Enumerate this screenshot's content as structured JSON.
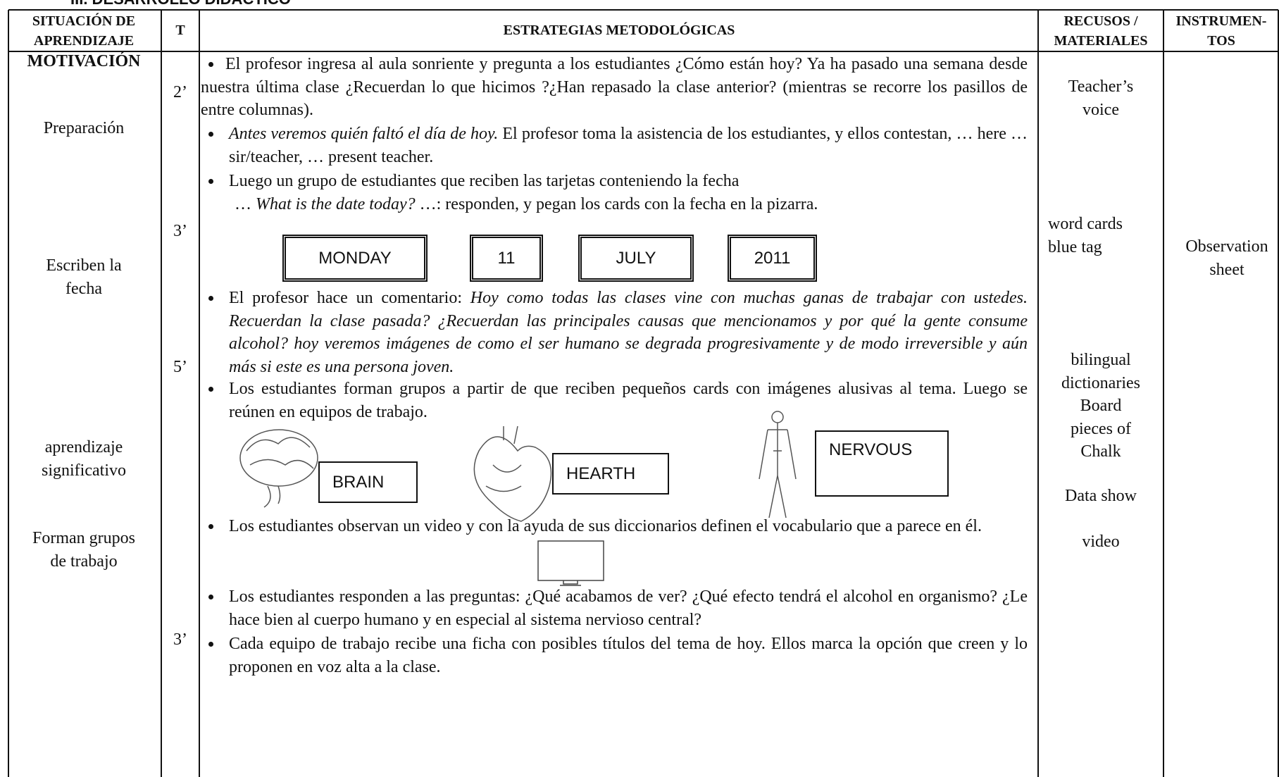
{
  "header": {
    "title": "III. DESARROLLO DIDÁCTICO"
  },
  "table": {
    "columns": [
      [
        "SITUACIÓN DE",
        "APRENDIZAJE"
      ],
      [
        "T"
      ],
      [
        "ESTRATEGIAS METODOLÓGICAS"
      ],
      [
        "RECUSOS /",
        "MATERIALES"
      ],
      [
        "INSTRUMEN-",
        "TOS"
      ]
    ],
    "situation": [
      [
        "MOTIVACIÓN"
      ],
      [
        "Preparación"
      ],
      [
        "Escriben la",
        "fecha"
      ],
      [
        "aprendizaje",
        "significativo"
      ],
      [
        "Forman grupos",
        "de trabajo"
      ]
    ],
    "times": [
      "2’",
      "3’",
      "5’",
      "3’"
    ],
    "strategies": [
      {
        "segments": [
          {
            "text": "El profesor ingresa al aula sonriente y pregunta a los estudiantes  ¿Cómo están hoy?  Ya ha pasado una semana desde nuestra última clase ¿Recuerdan lo que hicimos ?¿Han repasado la clase anterior? (mientras se recorre los pasillos de entre columnas)."
          }
        ]
      },
      {
        "segments": [
          {
            "text": "Antes veremos quién faltó el día de hoy.",
            "italic": true
          },
          {
            "text": " El profesor toma la asistencia de los estudiantes, y ellos contestan, … here … sir/teacher, … present teacher."
          }
        ]
      },
      {
        "segments": [
          {
            "text": "Luego un grupo de estudiantes que reciben las tarjetas conteniendo la fecha"
          }
        ]
      },
      {
        "segments": [
          {
            "text": "… "
          },
          {
            "text": "What is the date today?",
            "italic": true
          },
          {
            "text": " …: responden, y pegan los cards con la fecha en la pizarra."
          }
        ]
      },
      {
        "segments": [
          {
            "text": "El profesor hace  un comentario: "
          },
          {
            "text": "Hoy como todas las clases vine con muchas ganas de trabajar con ustedes. Recuerdan la clase pasada? ¿Recuerdan las principales causas que mencionamos y por qué la gente consume alcohol? hoy veremos imágenes de como el ser humano se degrada progresivamente y de modo irreversible y aún más si este es una persona joven.",
            "italic": true
          }
        ]
      },
      {
        "segments": [
          {
            "text": "Los estudiantes forman grupos a partir de que reciben pequeños cards con imágenes alusivas al tema. Luego se reúnen en equipos de trabajo."
          }
        ]
      },
      {
        "segments": [
          {
            "text": "Los estudiantes observan un video y con la ayuda de sus diccionarios definen el vocabulario que a parece en él."
          }
        ]
      },
      {
        "segments": [
          {
            "text": "Los estudiantes responden a las preguntas: ¿Qué acabamos de ver? ¿Qué efecto tendrá el alcohol en organismo? ¿Le hace bien al cuerpo humano y en especial al sistema nervioso central?"
          }
        ]
      },
      {
        "segments": [
          {
            "text": "Cada equipo de trabajo recibe una ficha con posibles títulos del tema de hoy. Ellos marca la opción que creen y lo proponen en voz alta a la clase."
          }
        ]
      }
    ],
    "date_cards": [
      "MONDAY",
      "11",
      "JULY",
      "2011"
    ],
    "image_cards": [
      "BRAIN",
      "HEARTH",
      "NERVOUS"
    ],
    "resources": [
      [
        "Teacher’s",
        "voice"
      ],
      [
        "word cards",
        "blue tag"
      ],
      [
        "bilingual",
        "dictionaries",
        "Board",
        "pieces of",
        "Chalk"
      ],
      [
        "Data show"
      ],
      [
        "video"
      ]
    ],
    "instruments": [
      [
        "Observation",
        "sheet"
      ]
    ]
  }
}
